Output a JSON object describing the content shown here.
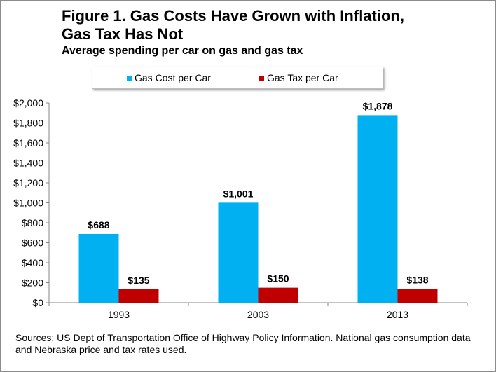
{
  "title_lines": [
    "Figure 1. Gas Costs Have Grown with Inflation,",
    "Gas Tax Has Not"
  ],
  "subtitle": "Average spending per car on gas and gas tax",
  "sources": "Sources: US Dept of Transportation Office of Highway Policy Information. National gas consumption data and Nebraska price and tax rates used.",
  "colors": {
    "gas_cost": "#00b0f0",
    "gas_tax": "#c00000"
  },
  "chart_data": {
    "type": "bar",
    "title": "Figure 1. Gas Costs Have Grown with Inflation, Gas Tax Has Not",
    "subtitle": "Average spending per car on gas and gas tax",
    "categories": [
      "1993",
      "2003",
      "2013"
    ],
    "series": [
      {
        "name": "Gas Cost per Car",
        "values": [
          688,
          1001,
          1878
        ],
        "labels": [
          "$688",
          "$1,001",
          "$1,878"
        ]
      },
      {
        "name": "Gas Tax per Car",
        "values": [
          135,
          150,
          138
        ],
        "labels": [
          "$135",
          "$150",
          "$138"
        ]
      }
    ],
    "ylim": [
      0,
      2000
    ],
    "yticks": [
      "$0",
      "$200",
      "$400",
      "$600",
      "$800",
      "$1,000",
      "$1,200",
      "$1,400",
      "$1,600",
      "$1,800",
      "$2,000"
    ],
    "grid": false,
    "legend_position": "top"
  }
}
